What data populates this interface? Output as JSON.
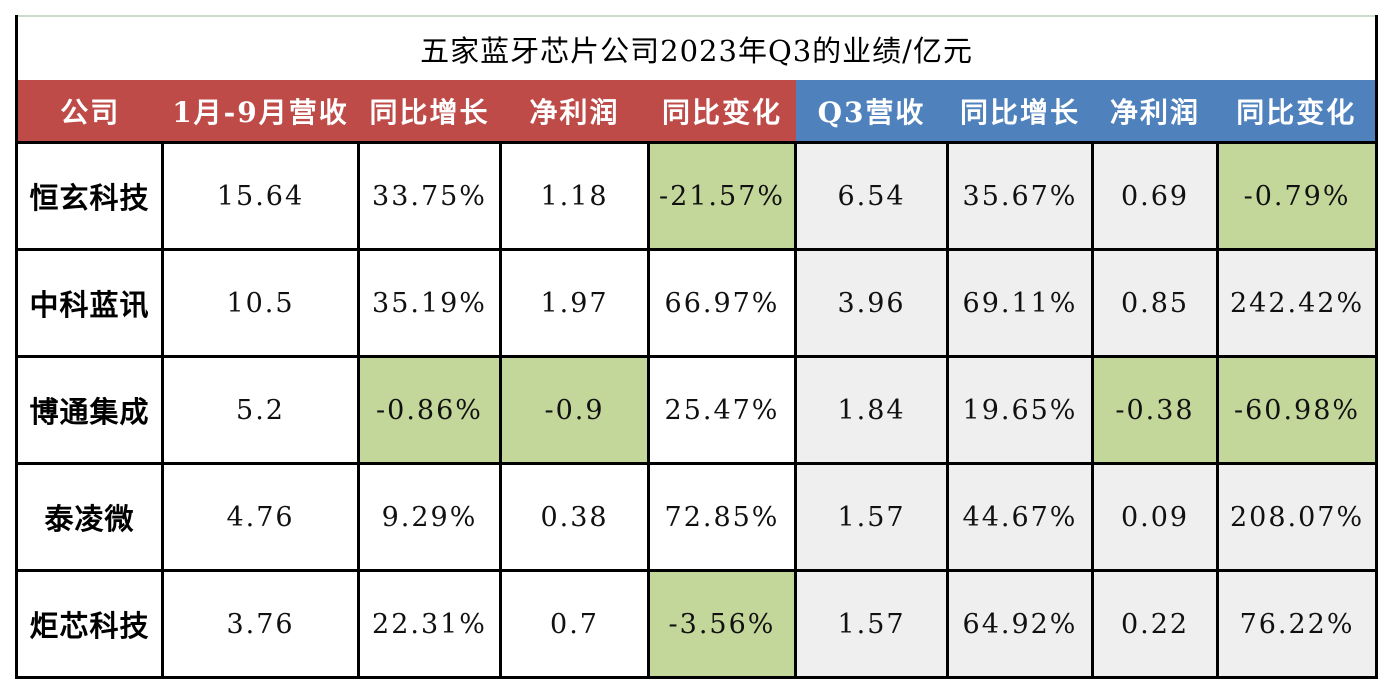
{
  "table": {
    "title": "五家蓝牙芯片公司2023年Q3的业绩/亿元",
    "colors": {
      "header_red": "#BE4B48",
      "header_blue": "#4F81BD",
      "highlight_green": "#C4D79B",
      "right_section_gray": "#F0EFEF",
      "top_border_light": "#CDD9CD",
      "grid_black": "#000000"
    },
    "columns": [
      {
        "label": "公司",
        "section": "red"
      },
      {
        "label": "1月-9月营收",
        "section": "red"
      },
      {
        "label": "同比增长",
        "section": "red"
      },
      {
        "label": "净利润",
        "section": "red"
      },
      {
        "label": "同比变化",
        "section": "red"
      },
      {
        "label": "Q3营收",
        "section": "blue"
      },
      {
        "label": "同比增长",
        "section": "blue"
      },
      {
        "label": "净利润",
        "section": "blue"
      },
      {
        "label": "同比变化",
        "section": "blue"
      }
    ],
    "rows": [
      {
        "company": "恒玄科技",
        "values": [
          "15.64",
          "33.75%",
          "1.18",
          "-21.57%",
          "6.54",
          "35.67%",
          "0.69",
          "-0.79%"
        ]
      },
      {
        "company": "中科蓝讯",
        "values": [
          "10.5",
          "35.19%",
          "1.97",
          "66.97%",
          "3.96",
          "69.11%",
          "0.85",
          "242.42%"
        ]
      },
      {
        "company": "博通集成",
        "values": [
          "5.2",
          "-0.86%",
          "-0.9",
          "25.47%",
          "1.84",
          "19.65%",
          "-0.38",
          "-60.98%"
        ]
      },
      {
        "company": "泰凌微",
        "values": [
          "4.76",
          "9.29%",
          "0.38",
          "72.85%",
          "1.57",
          "44.67%",
          "0.09",
          "208.07%"
        ]
      },
      {
        "company": "炬芯科技",
        "values": [
          "3.76",
          "22.31%",
          "0.7",
          "-3.56%",
          "1.57",
          "64.92%",
          "0.22",
          "76.22%"
        ]
      }
    ]
  },
  "chart_data": {
    "type": "table",
    "title": "五家蓝牙芯片公司2023年Q3的业绩/亿元",
    "unit": "亿元",
    "columns": [
      "公司",
      "1月-9月营收",
      "同比增长",
      "净利润",
      "同比变化",
      "Q3营收",
      "同比增长",
      "净利润",
      "同比变化"
    ],
    "rows": [
      [
        "恒玄科技",
        "15.64",
        "33.75%",
        "1.18",
        "-21.57%",
        "6.54",
        "35.67%",
        "0.69",
        "-0.79%"
      ],
      [
        "中科蓝讯",
        "10.5",
        "35.19%",
        "1.97",
        "66.97%",
        "3.96",
        "69.11%",
        "0.85",
        "242.42%"
      ],
      [
        "博通集成",
        "5.2",
        "-0.86%",
        "-0.9",
        "25.47%",
        "1.84",
        "19.65%",
        "-0.38",
        "-60.98%"
      ],
      [
        "泰凌微",
        "4.76",
        "9.29%",
        "0.38",
        "72.85%",
        "1.57",
        "44.67%",
        "0.09",
        "208.07%"
      ],
      [
        "炬芯科技",
        "3.76",
        "22.31%",
        "0.7",
        "-3.56%",
        "1.57",
        "64.92%",
        "0.22",
        "76.22%"
      ]
    ],
    "layout_hints": {
      "left_section_header_color": "#BE4B48",
      "right_section_header_color": "#4F81BD",
      "negative_value_highlight": "#C4D79B",
      "right_section_cell_background": "#F0EFEF"
    }
  }
}
